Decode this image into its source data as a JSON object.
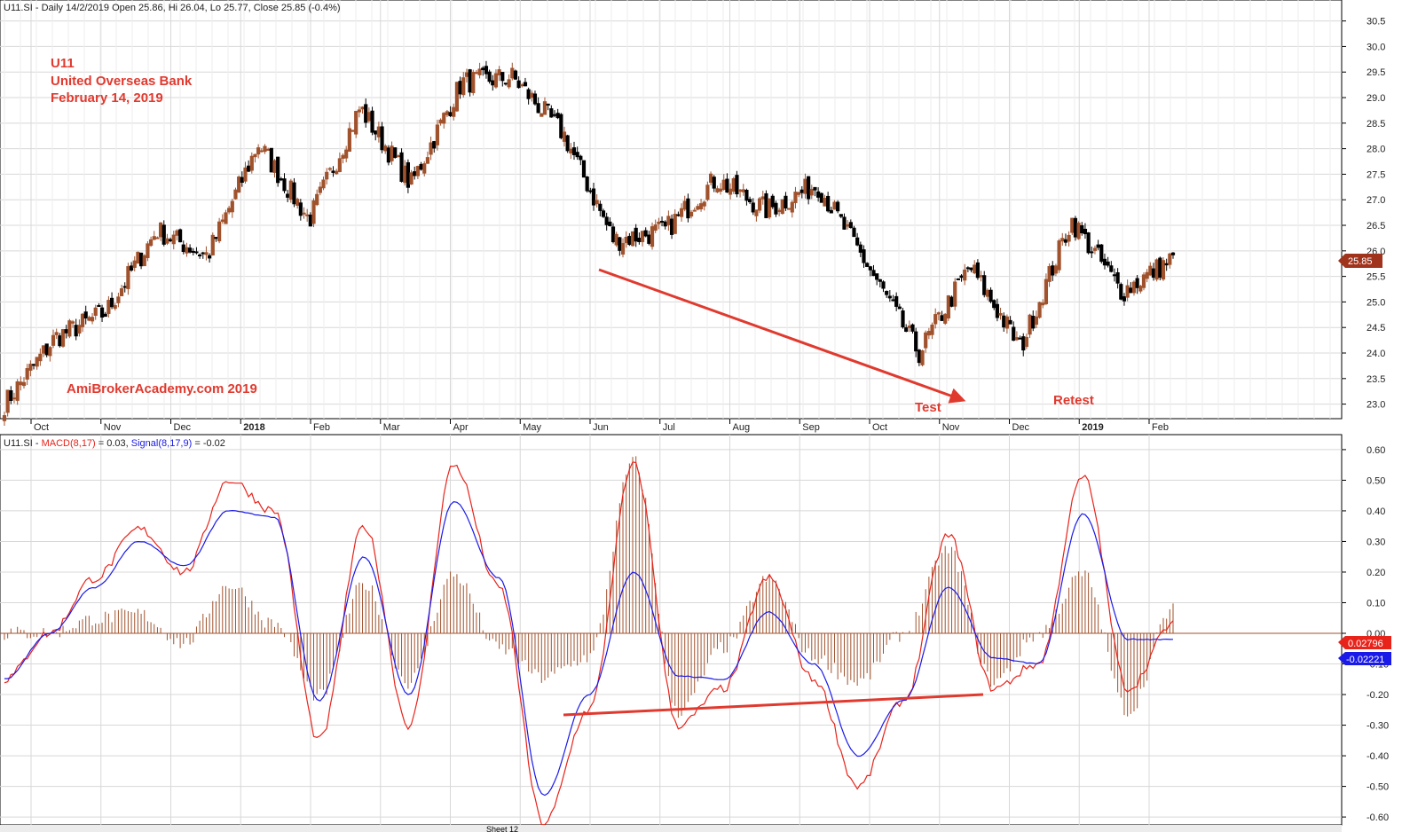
{
  "header_price": "U11.SI - Daily 14/2/2019 Open 25.86, Hi 26.04, Lo 25.77, Close 25.85 (-0.4%)",
  "header_macd": {
    "prefix": "U11.SI - ",
    "macd_label": "MACD(8,17)",
    "macd_value": " = 0.03, ",
    "signal_label": "Signal(8,17,9)",
    "signal_value": " = -0.02"
  },
  "title_lines": [
    "U11",
    "United Overseas Bank",
    "February 14, 2019"
  ],
  "watermark": "AmiBrokerAcademy.com  2019",
  "annotations": {
    "test": "Test",
    "retest": "Retest"
  },
  "last_price_label": "25.85",
  "macd_last_label": "0.02796",
  "signal_last_label": "-0.02221",
  "colors": {
    "up": "#a0522d",
    "down": "#000000",
    "macd": "#e8231a",
    "signal": "#1a1ae8",
    "hist": "#a0522d",
    "arrow": "#e03a2f",
    "annot": "#e03a2f"
  },
  "tab_text": "Sheet 12",
  "chart_data": [
    {
      "type": "candlestick",
      "x_labels": [
        "Oct",
        "Nov",
        "Dec",
        "2018",
        "Feb",
        "Mar",
        "Apr",
        "May",
        "Jun",
        "Jul",
        "Aug",
        "Sep",
        "Oct",
        "Nov",
        "Dec",
        "2019",
        "Feb"
      ],
      "ylim": [
        22.75,
        30.65
      ],
      "yticks": [
        23.0,
        23.5,
        24.0,
        24.5,
        25.0,
        25.5,
        26.0,
        26.5,
        27.0,
        27.5,
        28.0,
        28.5,
        29.0,
        29.5,
        30.0,
        30.5
      ],
      "anchor_closes": [
        23.0,
        24.3,
        24.8,
        26.4,
        25.9,
        28.1,
        26.6,
        28.8,
        27.3,
        29.3,
        29.4,
        28.3,
        26.2,
        26.4,
        27.4,
        26.8,
        27.3,
        25.7,
        24.0,
        25.7,
        24.1,
        26.6,
        25.2,
        25.85
      ],
      "trend_line": {
        "from": [
          28.3,
          25.7
        ],
        "to": [
          23.4,
          23.4
        ]
      }
    },
    {
      "type": "line",
      "series": [
        {
          "name": "MACD(8,17)",
          "values": [
            -0.15,
            0.0,
            0.18,
            0.34,
            0.2,
            0.5,
            0.4,
            -0.35,
            0.35,
            -0.3,
            0.55,
            0.15,
            -0.62,
            -0.25,
            0.55,
            -0.3,
            -0.18,
            0.18,
            -0.15,
            -0.5,
            -0.22,
            0.32,
            -0.18,
            -0.1,
            0.51,
            -0.18,
            0.03
          ]
        },
        {
          "name": "Signal(8,17,9)",
          "values": [
            -0.15,
            0.0,
            0.15,
            0.3,
            0.22,
            0.4,
            0.38,
            -0.22,
            0.25,
            -0.2,
            0.43,
            0.18,
            -0.53,
            -0.2,
            0.2,
            -0.14,
            -0.15,
            0.07,
            -0.1,
            -0.4,
            -0.22,
            0.15,
            -0.08,
            -0.1,
            0.39,
            -0.02,
            -0.02
          ]
        }
      ],
      "ylim": [
        -0.62,
        0.62
      ],
      "yticks": [
        0.6,
        0.5,
        0.4,
        0.3,
        0.2,
        0.1,
        0.0,
        -0.1,
        -0.2,
        -0.3,
        -0.4,
        -0.5,
        -0.6
      ],
      "zero_line": true
    }
  ]
}
